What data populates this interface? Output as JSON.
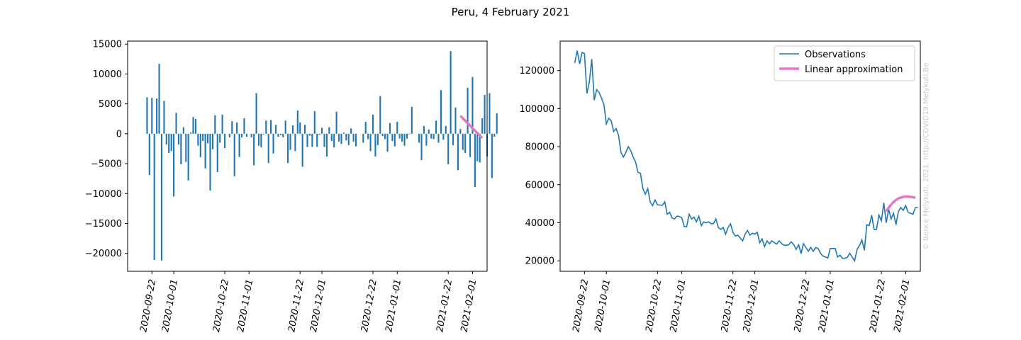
{
  "figure": {
    "title": "Peru, 4 February 2021",
    "watermark": "© Bence Melykuti, 2021. http://COVID19.Melykuti.Be"
  },
  "colors": {
    "observations": "#1f77b4",
    "approximation": "#e377c2"
  },
  "chart_data": [
    {
      "type": "bar",
      "title": "",
      "xlabel": "",
      "ylabel": "",
      "x_axis": "date",
      "start_date": "2020-09-20",
      "xlim": [
        "2020-09-12",
        "2021-02-07"
      ],
      "ylim": [
        -23000,
        15500
      ],
      "yticks": [
        15000,
        10000,
        5000,
        0,
        -5000,
        -10000,
        -15000,
        -20000
      ],
      "yticklabels": [
        "15000",
        "10000",
        "5000",
        "0",
        "−5000",
        "−10000",
        "−15000",
        "−20000"
      ],
      "xticks": [
        "2020-09-22",
        "2020-10-01",
        "2020-10-22",
        "2020-11-01",
        "2020-11-22",
        "2020-12-01",
        "2020-12-22",
        "2021-01-01",
        "2021-01-22",
        "2021-02-01"
      ],
      "grid": false,
      "series": [
        {
          "values": [
            6100,
            -6900,
            6000,
            -21100,
            5900,
            11700,
            -21200,
            5500,
            -1800,
            -3200,
            -2900,
            -10500,
            3500,
            -1800,
            -5100,
            1100,
            -4700,
            -7800,
            200,
            2800,
            2500,
            -2000,
            -3900,
            -1200,
            -5800,
            -1600,
            -9500,
            -2600,
            3100,
            -6400,
            -1500,
            3200,
            -2400,
            0,
            -600,
            2100,
            -7100,
            1900,
            -3900,
            -600,
            2600,
            -500,
            0,
            -600,
            -5300,
            6800,
            -2000,
            -2300,
            -100,
            2200,
            -4900,
            2300,
            -3300,
            1500,
            -500,
            -200,
            -600,
            2200,
            -4900,
            -2700,
            1400,
            -2900,
            3900,
            1900,
            -5500,
            1500,
            -2200,
            -300,
            -2200,
            3800,
            -2200,
            -200,
            1000,
            -2200,
            -3800,
            1100,
            -1200,
            -2300,
            3700,
            -1300,
            -1700,
            200,
            -1100,
            -1900,
            900,
            -1300,
            -2100,
            0,
            0,
            -1500,
            2000,
            -900,
            -2900,
            3200,
            -3800,
            -1900,
            6300,
            -400,
            -900,
            -3000,
            1800,
            -1200,
            -2100,
            2000,
            -800,
            -1300,
            -2000,
            -800,
            -100,
            4500,
            0,
            0,
            -1500,
            -4400,
            1300,
            -2000,
            700,
            -800,
            -900,
            2200,
            -1500,
            7300,
            -1000,
            1300,
            -5100,
            13800,
            -1900,
            4400,
            -6100,
            800,
            -2700,
            -3200,
            7700,
            -3900,
            9500,
            -8900,
            -4600,
            -4800,
            2600,
            6500,
            -3800,
            6800,
            -7400,
            -500,
            3400
          ]
        }
      ],
      "approximation": {
        "values": [
          3000,
          -700
        ],
        "start": "2021-01-27",
        "end": "2021-02-05"
      }
    },
    {
      "type": "line",
      "title": "",
      "xlabel": "",
      "ylabel": "",
      "x_axis": "date",
      "start_date": "2020-09-18",
      "xlim": [
        "2020-09-12",
        "2021-02-07"
      ],
      "ylim": [
        14500,
        135500
      ],
      "yticks": [
        120000,
        100000,
        80000,
        60000,
        40000,
        20000
      ],
      "yticklabels": [
        "120000",
        "100000",
        "80000",
        "60000",
        "40000",
        "20000"
      ],
      "xticks": [
        "2020-09-22",
        "2020-10-01",
        "2020-10-22",
        "2020-11-01",
        "2020-11-22",
        "2020-12-01",
        "2020-12-22",
        "2021-01-01",
        "2021-01-22",
        "2021-02-01"
      ],
      "grid": false,
      "legend": {
        "position": "upper right",
        "entries": [
          "Observations",
          "Linear approximation"
        ]
      },
      "series": [
        {
          "name": "Observations",
          "values": [
            124000,
            130500,
            123500,
            129500,
            129000,
            108000,
            114000,
            126000,
            104500,
            110000,
            108500,
            105500,
            102000,
            92000,
            95000,
            93500,
            88000,
            89500,
            86000,
            77000,
            74500,
            77000,
            80000,
            78000,
            74500,
            72000,
            66500,
            66000,
            58000,
            55000,
            58000,
            51000,
            49000,
            52000,
            49500,
            49300,
            49200,
            51000,
            44500,
            45500,
            42500,
            42000,
            43500,
            43300,
            42600,
            38000,
            38000,
            44500,
            42000,
            43000,
            40500,
            43500,
            38500,
            40500,
            40000,
            40500,
            39600,
            39500,
            42000,
            37500,
            36500,
            37500,
            34000,
            37500,
            39500,
            35000,
            33000,
            33500,
            32000,
            30500,
            34000,
            36000,
            33500,
            34500,
            34000,
            35000,
            29500,
            31500,
            27500,
            30500,
            29000,
            30500,
            29500,
            28800,
            30500,
            29000,
            28200,
            28200,
            28500,
            30000,
            28500,
            26000,
            28500,
            23800,
            29000,
            27000,
            25000,
            27000,
            25000,
            27000,
            26500,
            24000,
            22500,
            22000,
            21500,
            26500,
            26500,
            26500,
            22000,
            23000,
            21300,
            21300,
            21800,
            24000,
            22000,
            20000,
            26000,
            28000,
            31000,
            25500,
            39000,
            38500,
            44000,
            36500,
            36500,
            44000,
            41000,
            50500,
            40000,
            47000,
            42000,
            45000,
            39000,
            46000,
            48000,
            46500,
            49000,
            45500,
            45000,
            44500,
            48000,
            48000
          ]
        }
      ],
      "approximation": {
        "start": "2021-01-24",
        "end": "2021-02-05",
        "values": [
          46000,
          48500,
          50500,
          52000,
          53000,
          53500,
          53800,
          53700,
          53500,
          53200
        ]
      }
    }
  ]
}
